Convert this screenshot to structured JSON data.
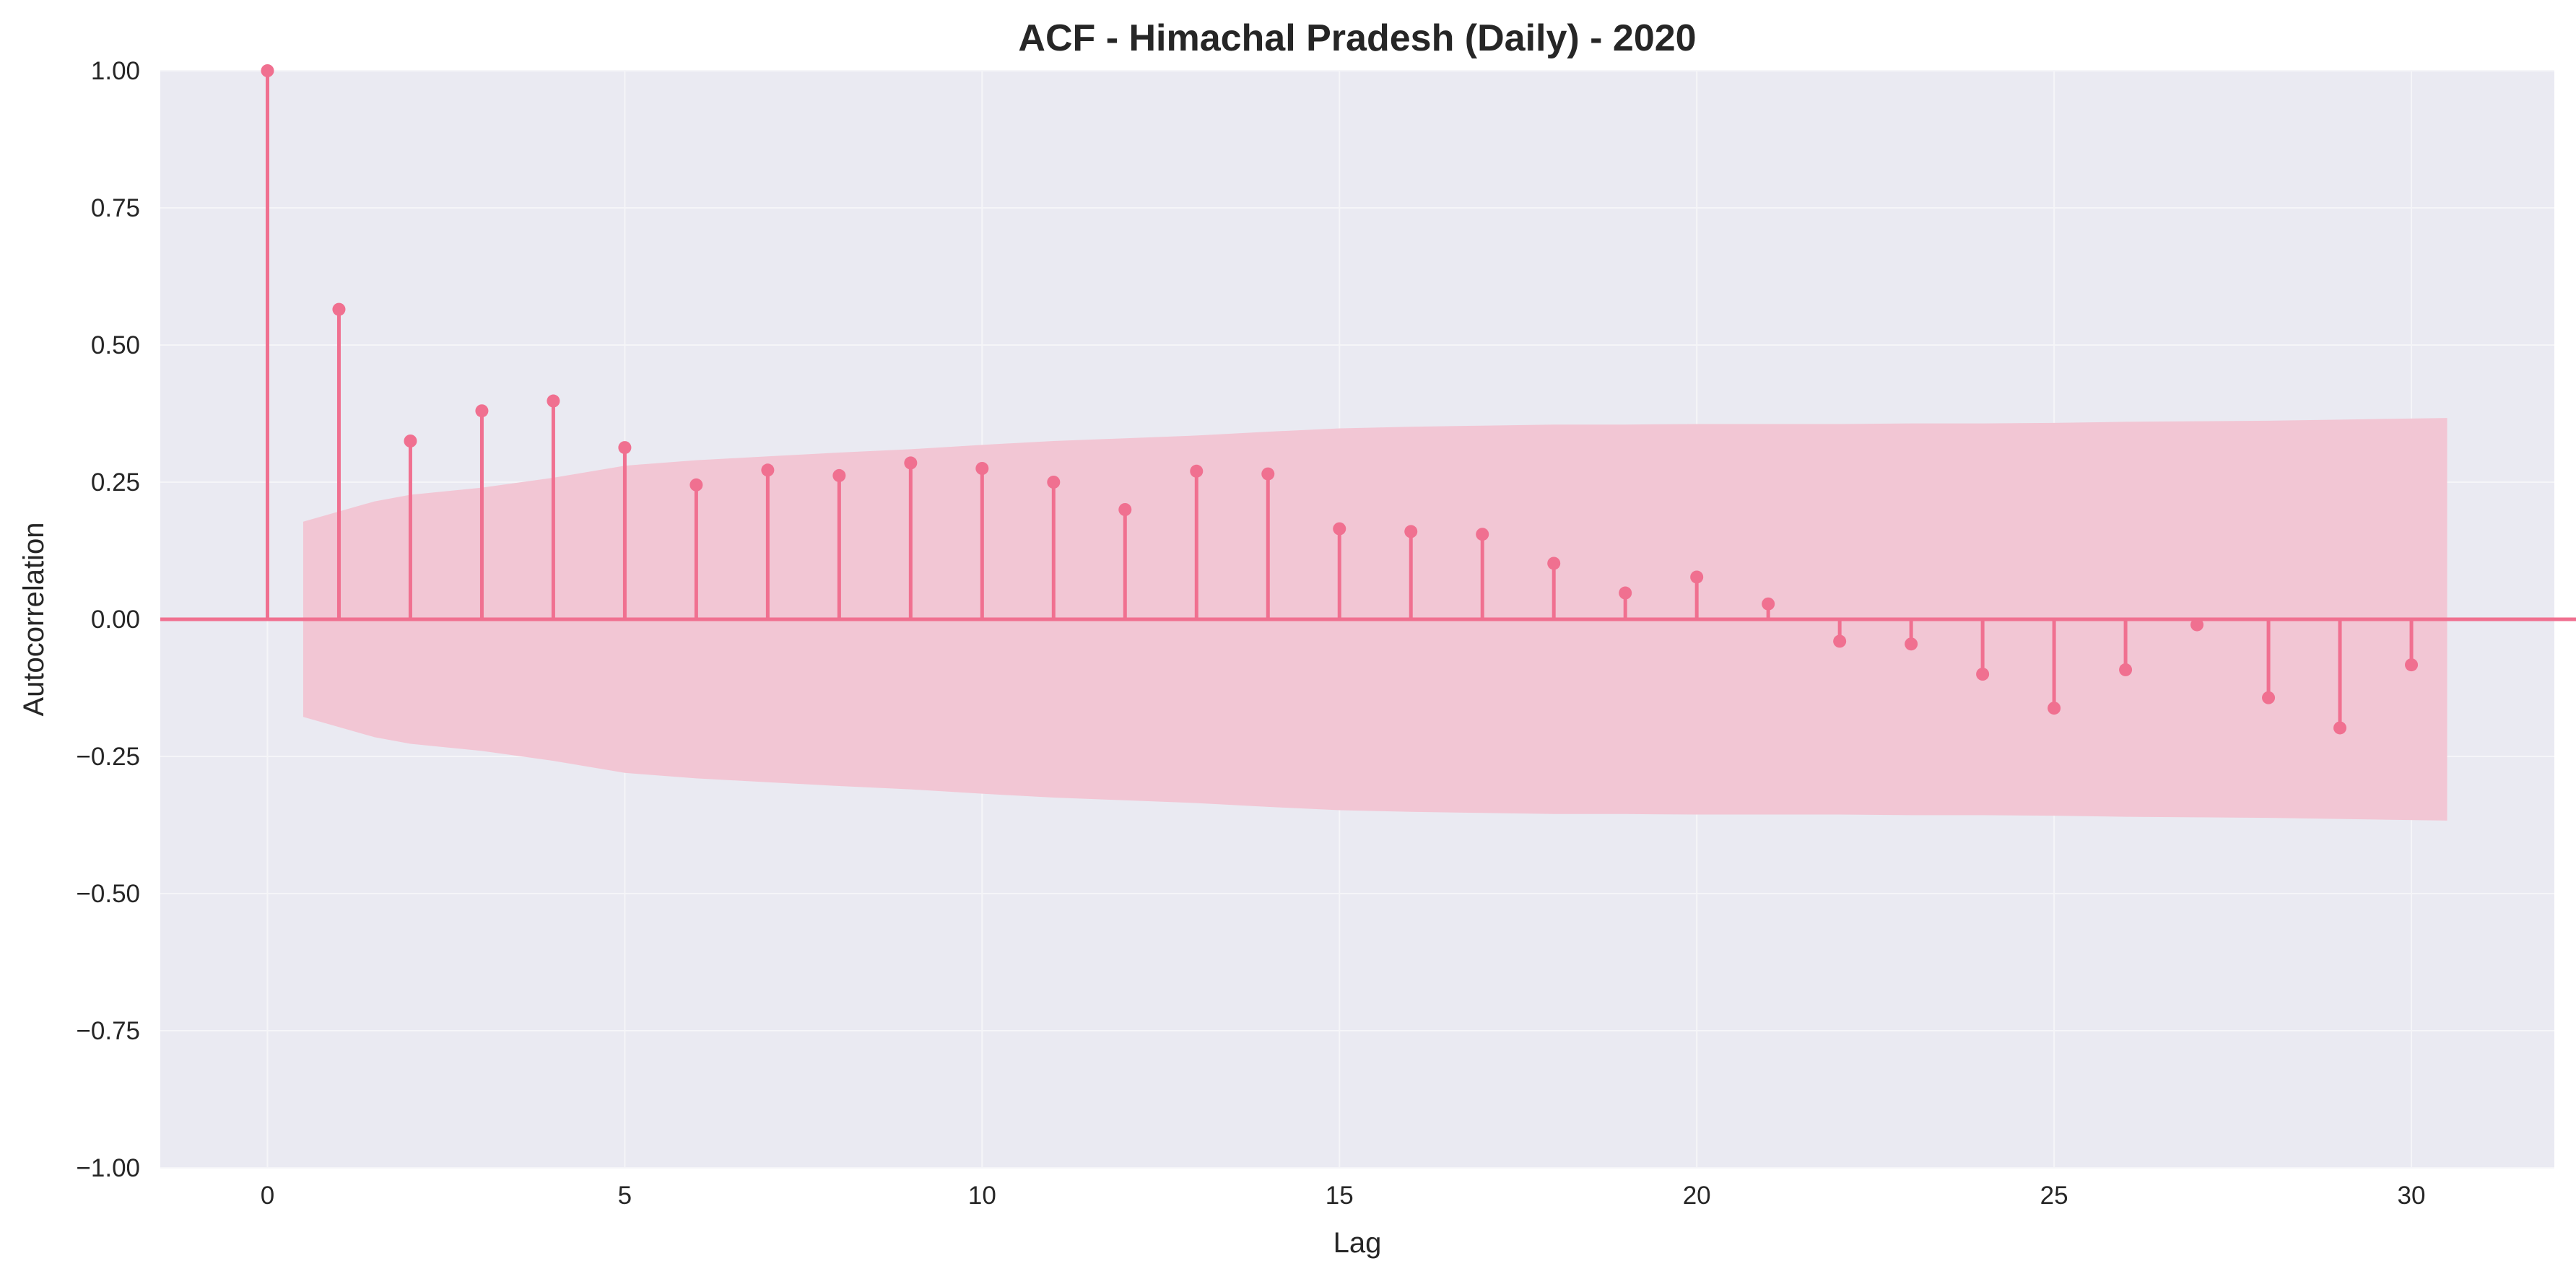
{
  "chart_data": {
    "type": "stem",
    "title": "ACF - Himachal Pradesh (Daily) - 2020",
    "xlabel": "Lag",
    "ylabel": "Autocorrelation",
    "xlim": [
      -1.5,
      32
    ],
    "ylim": [
      -1.0,
      1.0
    ],
    "xticks": [
      0,
      5,
      10,
      15,
      20,
      25,
      30
    ],
    "xtick_labels": [
      "0",
      "5",
      "10",
      "15",
      "20",
      "25",
      "30"
    ],
    "yticks": [
      -1.0,
      -0.75,
      -0.5,
      -0.25,
      0.0,
      0.25,
      0.5,
      0.75,
      1.0
    ],
    "ytick_labels": [
      "−1.00",
      "−0.75",
      "−0.50",
      "−0.25",
      "0.00",
      "0.25",
      "0.50",
      "0.75",
      "1.00"
    ],
    "grid": true,
    "lags": [
      0,
      1,
      2,
      3,
      4,
      5,
      6,
      7,
      8,
      9,
      10,
      11,
      12,
      13,
      14,
      15,
      16,
      17,
      18,
      19,
      20,
      21,
      22,
      23,
      24,
      25,
      26,
      27,
      28,
      29,
      30
    ],
    "values": [
      1.0,
      0.565,
      0.325,
      0.38,
      0.398,
      0.313,
      0.245,
      0.272,
      0.262,
      0.285,
      0.275,
      0.25,
      0.2,
      0.27,
      0.265,
      0.165,
      0.16,
      0.155,
      0.102,
      0.048,
      0.077,
      0.028,
      -0.04,
      -0.045,
      -0.1,
      -0.162,
      -0.092,
      -0.01,
      -0.143,
      -0.198,
      -0.083
    ],
    "confidence_band": {
      "x": [
        0.5,
        1.5,
        2,
        3,
        4,
        5,
        6,
        7,
        8,
        9,
        10,
        11,
        12,
        13,
        14,
        15,
        16,
        17,
        18,
        19,
        20,
        21,
        22,
        23,
        24,
        25,
        26,
        27,
        28,
        29,
        30.5
      ],
      "upper": [
        0.178,
        0.215,
        0.227,
        0.24,
        0.258,
        0.28,
        0.29,
        0.297,
        0.304,
        0.31,
        0.318,
        0.325,
        0.33,
        0.335,
        0.342,
        0.348,
        0.351,
        0.353,
        0.355,
        0.355,
        0.356,
        0.356,
        0.356,
        0.357,
        0.357,
        0.358,
        0.36,
        0.361,
        0.362,
        0.364,
        0.367
      ],
      "lower": [
        -0.178,
        -0.215,
        -0.227,
        -0.24,
        -0.258,
        -0.28,
        -0.29,
        -0.297,
        -0.304,
        -0.31,
        -0.318,
        -0.325,
        -0.33,
        -0.335,
        -0.342,
        -0.348,
        -0.351,
        -0.353,
        -0.355,
        -0.355,
        -0.356,
        -0.356,
        -0.356,
        -0.357,
        -0.357,
        -0.358,
        -0.36,
        -0.361,
        -0.362,
        -0.364,
        -0.367
      ]
    },
    "colors": {
      "stem": "#f07090",
      "band": "#f2c6d4",
      "plot_bg": "#eaeaf2",
      "grid": "#f5f5f8",
      "text": "#262626"
    }
  }
}
